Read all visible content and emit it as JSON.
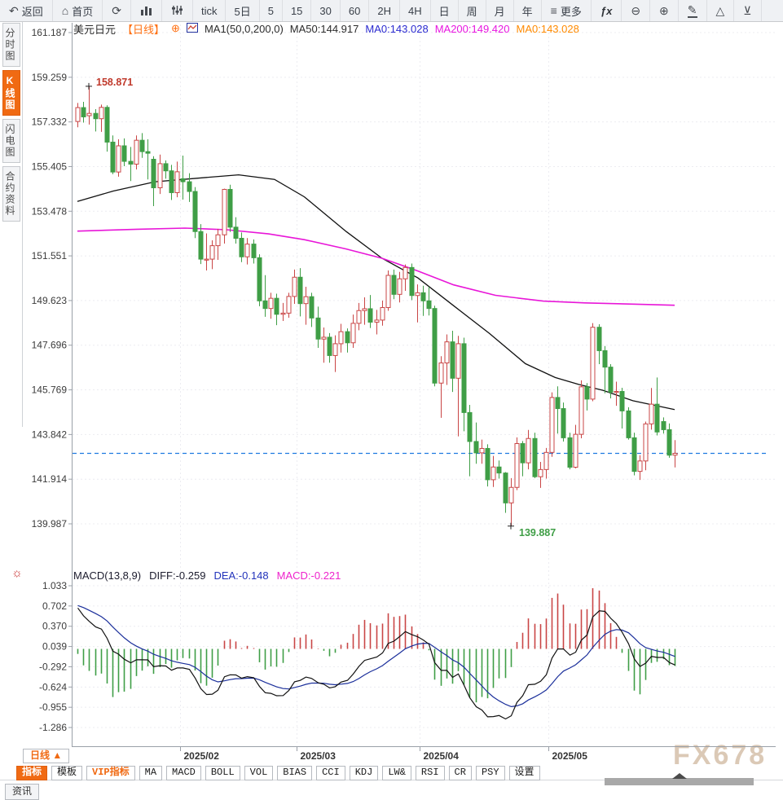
{
  "icons": {
    "back_arrow": "↶",
    "home": "⌂",
    "refresh": "⟳",
    "hamburger": "≡",
    "fx": "ƒx",
    "zoom_out": "⊖",
    "zoom_in": "⊕",
    "pencil": "✎",
    "triangle": "△",
    "xor": "⊻",
    "sun_settings": "☼",
    "circle_plus": "⊕"
  },
  "toolbar": {
    "back_label": "返回",
    "home_label": "首页",
    "periods": [
      "tick",
      "5日",
      "5",
      "15",
      "30",
      "60",
      "2H",
      "4H",
      "日",
      "周",
      "月",
      "年"
    ],
    "more_label": "更多"
  },
  "sidebar": {
    "items": [
      {
        "label": "分时图"
      },
      {
        "label": "K线图",
        "selected": true
      },
      {
        "label": "闪电图"
      },
      {
        "label": "合约资料"
      }
    ]
  },
  "chart_header": {
    "symbol": "美元日元",
    "period": "【日线】",
    "ma_settings": "MA1(50,0,200,0)",
    "ma50": "MA50:144.917",
    "ma0_blue": "MA0:143.028",
    "ma200": "MA200:149.420",
    "ma0_orange": "MA0:143.028"
  },
  "macd_header": {
    "formula": "MACD(13,8,9)",
    "diff": "DIFF:-0.259",
    "dea": "DEA:-0.148",
    "macd": "MACD:-0.221"
  },
  "bottom": {
    "period_label": "日线 ▲",
    "tabs": [
      {
        "label": "指标",
        "state": "selected"
      },
      {
        "label": "模板",
        "state": "normal"
      },
      {
        "label": "VIP指标",
        "state": "vip"
      },
      {
        "label": "MA",
        "state": "normal"
      },
      {
        "label": "MACD",
        "state": "normal"
      },
      {
        "label": "BOLL",
        "state": "normal"
      },
      {
        "label": "VOL",
        "state": "normal"
      },
      {
        "label": "BIAS",
        "state": "normal"
      },
      {
        "label": "CCI",
        "state": "normal"
      },
      {
        "label": "KDJ",
        "state": "normal"
      },
      {
        "label": "LW&",
        "state": "normal"
      },
      {
        "label": "RSI",
        "state": "normal"
      },
      {
        "label": "CR",
        "state": "normal"
      },
      {
        "label": "PSY",
        "state": "normal"
      },
      {
        "label": "设置",
        "state": "normal"
      }
    ],
    "news_tab": "资讯"
  },
  "watermark": "FX678",
  "chart_data": {
    "type": "candlestick_with_macd",
    "title": "美元日元 日线 (USD/JPY daily)",
    "y_axis_ticks": [
      "161.187",
      "159.259",
      "157.332",
      "155.405",
      "153.478",
      "151.551",
      "149.623",
      "147.696",
      "145.769",
      "143.842",
      "141.914",
      "139.987"
    ],
    "macd_axis_ticks": [
      "1.033",
      "0.702",
      "0.370",
      "0.039",
      "-0.292",
      "-0.624",
      "-0.955",
      "-1.286"
    ],
    "x_ticks": [
      "2025/02",
      "2025/03",
      "2025/04",
      "2025/05"
    ],
    "current_price": 143.028,
    "high_marker": {
      "label": "158.871",
      "value": 158.871,
      "color": "#c0392b"
    },
    "low_marker": {
      "label": "139.887",
      "value": 139.887,
      "color": "#3f9e46"
    },
    "colors": {
      "up": "#c94545",
      "down": "#3f9e46",
      "ma50": "#111111",
      "ma200": "#e816d8",
      "diff": "#111111",
      "dea": "#1b2f9b",
      "current_line": "#1f7ae0",
      "grid": "#ececf1",
      "axis": "#9aa0a8",
      "label": "#3b3b3b"
    },
    "candles": [
      [
        "01-08",
        157.35,
        158.15,
        157.1,
        157.95
      ],
      [
        "01-09",
        157.95,
        158.2,
        157.3,
        157.55
      ],
      [
        "01-10",
        157.6,
        158.87,
        157.22,
        157.7
      ],
      [
        "01-13",
        157.7,
        157.88,
        156.92,
        157.47
      ],
      [
        "01-14",
        157.47,
        158.08,
        156.9,
        157.96
      ],
      [
        "01-15",
        157.96,
        158.05,
        156.05,
        156.46
      ],
      [
        "01-16",
        156.46,
        156.75,
        155.08,
        155.17
      ],
      [
        "01-17",
        155.17,
        156.58,
        154.97,
        156.3
      ],
      [
        "01-20",
        156.3,
        156.62,
        155.42,
        155.63
      ],
      [
        "01-21",
        155.63,
        156.25,
        154.78,
        155.51
      ],
      [
        "01-22",
        155.51,
        156.75,
        155.28,
        156.54
      ],
      [
        "01-23",
        156.54,
        156.85,
        155.78,
        156.05
      ],
      [
        "01-24",
        156.05,
        156.58,
        154.85,
        155.98
      ],
      [
        "01-27",
        155.72,
        155.85,
        153.7,
        154.49
      ],
      [
        "01-28",
        154.49,
        155.92,
        154.22,
        155.53
      ],
      [
        "01-29",
        155.53,
        155.67,
        154.88,
        155.22
      ],
      [
        "01-30",
        155.22,
        155.48,
        153.96,
        154.28
      ],
      [
        "01-31",
        154.28,
        155.62,
        154.08,
        155.18
      ],
      [
        "02-03",
        154.88,
        155.88,
        153.98,
        154.75
      ],
      [
        "02-04",
        154.75,
        155.12,
        153.88,
        154.33
      ],
      [
        "02-05",
        154.33,
        154.52,
        152.32,
        152.6
      ],
      [
        "02-06",
        152.6,
        152.92,
        151.2,
        151.41
      ],
      [
        "02-07",
        151.41,
        152.52,
        150.92,
        151.41
      ],
      [
        "02-10",
        151.41,
        152.22,
        150.98,
        151.99
      ],
      [
        "02-11",
        151.99,
        152.72,
        151.38,
        152.46
      ],
      [
        "02-12",
        152.46,
        154.45,
        152.08,
        154.42
      ],
      [
        "02-13",
        154.42,
        154.62,
        152.58,
        152.79
      ],
      [
        "02-14",
        152.79,
        153.22,
        152.08,
        152.31
      ],
      [
        "02-17",
        152.31,
        152.56,
        151.28,
        151.51
      ],
      [
        "02-18",
        151.51,
        152.32,
        151.18,
        152.06
      ],
      [
        "02-19",
        152.06,
        152.26,
        151.22,
        151.47
      ],
      [
        "02-20",
        151.47,
        151.62,
        149.38,
        149.61
      ],
      [
        "02-21",
        149.61,
        150.72,
        148.92,
        149.28
      ],
      [
        "02-24",
        149.28,
        149.96,
        148.84,
        149.72
      ],
      [
        "02-25",
        149.72,
        149.92,
        148.56,
        149.03
      ],
      [
        "02-26",
        149.03,
        149.52,
        148.74,
        149.08
      ],
      [
        "02-27",
        149.08,
        149.96,
        148.88,
        149.8
      ],
      [
        "02-28",
        149.8,
        150.96,
        149.48,
        150.63
      ],
      [
        "03-03",
        150.63,
        151.02,
        148.94,
        149.49
      ],
      [
        "03-04",
        149.49,
        150.22,
        148.58,
        149.79
      ],
      [
        "03-05",
        149.79,
        149.96,
        148.48,
        148.87
      ],
      [
        "03-06",
        148.87,
        149.36,
        147.58,
        147.96
      ],
      [
        "03-07",
        147.96,
        148.46,
        146.94,
        148.04
      ],
      [
        "03-10",
        148.04,
        148.22,
        146.94,
        147.25
      ],
      [
        "03-11",
        147.25,
        148.12,
        146.54,
        147.76
      ],
      [
        "03-12",
        147.76,
        148.62,
        147.38,
        148.28
      ],
      [
        "03-13",
        148.28,
        148.42,
        147.38,
        147.8
      ],
      [
        "03-14",
        147.8,
        149.02,
        147.58,
        148.64
      ],
      [
        "03-17",
        148.64,
        149.52,
        148.34,
        149.19
      ],
      [
        "03-18",
        149.19,
        149.76,
        148.58,
        149.27
      ],
      [
        "03-19",
        149.27,
        149.86,
        148.44,
        148.69
      ],
      [
        "03-20",
        148.69,
        149.22,
        148.16,
        148.78
      ],
      [
        "03-21",
        148.78,
        149.62,
        148.54,
        149.32
      ],
      [
        "03-24",
        149.32,
        150.92,
        149.18,
        150.71
      ],
      [
        "03-25",
        150.71,
        150.96,
        149.68,
        149.89
      ],
      [
        "03-26",
        149.89,
        150.86,
        149.54,
        150.56
      ],
      [
        "03-27",
        150.56,
        151.18,
        150.04,
        151.05
      ],
      [
        "03-28",
        151.05,
        151.22,
        149.64,
        149.84
      ],
      [
        "03-31",
        149.84,
        150.32,
        148.68,
        149.96
      ],
      [
        "04-01",
        149.96,
        150.26,
        148.96,
        149.61
      ],
      [
        "04-02",
        149.61,
        150.22,
        148.98,
        149.28
      ],
      [
        "04-03",
        149.28,
        149.4,
        145.92,
        146.06
      ],
      [
        "04-04",
        146.06,
        147.22,
        144.56,
        146.93
      ],
      [
        "04-07",
        146.93,
        148.16,
        145.98,
        147.84
      ],
      [
        "04-08",
        147.84,
        148.32,
        145.68,
        146.27
      ],
      [
        "04-09",
        146.27,
        148.1,
        143.76,
        147.76
      ],
      [
        "04-10",
        147.76,
        148.02,
        143.98,
        144.79
      ],
      [
        "04-11",
        144.79,
        145.12,
        142.04,
        143.54
      ],
      [
        "04-14",
        143.54,
        144.36,
        142.58,
        143.05
      ],
      [
        "04-15",
        143.05,
        143.62,
        142.58,
        143.24
      ],
      [
        "04-16",
        143.24,
        143.42,
        141.6,
        141.89
      ],
      [
        "04-17",
        141.89,
        142.92,
        141.58,
        142.44
      ],
      [
        "04-18",
        142.44,
        142.72,
        141.94,
        142.18
      ],
      [
        "04-21",
        142.18,
        142.22,
        140.46,
        140.89
      ],
      [
        "04-22",
        140.89,
        141.96,
        139.89,
        141.56
      ],
      [
        "04-23",
        141.56,
        143.72,
        141.44,
        143.45
      ],
      [
        "04-24",
        143.45,
        143.56,
        142.04,
        142.62
      ],
      [
        "04-25",
        142.62,
        144.04,
        142.34,
        143.67
      ],
      [
        "04-28",
        143.67,
        143.92,
        141.96,
        142.02
      ],
      [
        "04-29",
        142.02,
        142.66,
        141.54,
        142.33
      ],
      [
        "04-30",
        142.33,
        143.26,
        141.94,
        143.07
      ],
      [
        "05-01",
        143.07,
        145.66,
        142.88,
        145.44
      ],
      [
        "05-02",
        145.44,
        145.92,
        143.88,
        144.96
      ],
      [
        "05-05",
        144.96,
        145.22,
        143.54,
        143.7
      ],
      [
        "05-06",
        143.7,
        143.92,
        142.34,
        142.43
      ],
      [
        "05-07",
        142.43,
        144.26,
        142.38,
        143.85
      ],
      [
        "05-08",
        143.85,
        146.18,
        143.68,
        145.9
      ],
      [
        "05-09",
        145.9,
        146.06,
        144.88,
        145.37
      ],
      [
        "05-12",
        145.37,
        148.65,
        145.28,
        148.47
      ],
      [
        "05-13",
        148.47,
        148.6,
        146.88,
        147.46
      ],
      [
        "05-14",
        147.46,
        147.66,
        145.62,
        146.75
      ],
      [
        "05-15",
        146.75,
        146.88,
        145.4,
        145.67
      ],
      [
        "05-16",
        145.67,
        146.12,
        145.08,
        145.7
      ],
      [
        "05-19",
        145.7,
        145.86,
        144.1,
        144.86
      ],
      [
        "05-20",
        144.86,
        145.02,
        143.62,
        143.7
      ],
      [
        "05-21",
        143.7,
        143.92,
        142.08,
        142.25
      ],
      [
        "05-22",
        142.25,
        142.95,
        141.88,
        142.7
      ],
      [
        "05-23",
        142.7,
        144.4,
        142.3,
        144.3
      ],
      [
        "05-26",
        144.3,
        145.85,
        144.05,
        145.15
      ],
      [
        "05-27",
        145.15,
        146.3,
        143.8,
        143.95
      ],
      [
        "05-28",
        144.4,
        144.58,
        143.88,
        144.05
      ],
      [
        "05-29",
        144.05,
        144.32,
        142.84,
        142.95
      ],
      [
        "05-30",
        142.95,
        143.6,
        142.42,
        143.03
      ]
    ],
    "ma50": [
      [
        0,
        153.9
      ],
      [
        0.06,
        154.35
      ],
      [
        0.13,
        154.75
      ],
      [
        0.2,
        154.9
      ],
      [
        0.27,
        155.05
      ],
      [
        0.33,
        154.85
      ],
      [
        0.38,
        154.1
      ],
      [
        0.45,
        152.6
      ],
      [
        0.51,
        151.45
      ],
      [
        0.57,
        150.6
      ],
      [
        0.63,
        149.4
      ],
      [
        0.69,
        148.2
      ],
      [
        0.75,
        146.9
      ],
      [
        0.8,
        146.3
      ],
      [
        0.84,
        146.0
      ],
      [
        0.88,
        145.75
      ],
      [
        0.93,
        145.3
      ],
      [
        1,
        144.92
      ]
    ],
    "ma200": [
      [
        0,
        152.62
      ],
      [
        0.1,
        152.7
      ],
      [
        0.18,
        152.75
      ],
      [
        0.25,
        152.68
      ],
      [
        0.32,
        152.5
      ],
      [
        0.38,
        152.25
      ],
      [
        0.45,
        151.85
      ],
      [
        0.51,
        151.45
      ],
      [
        0.57,
        150.9
      ],
      [
        0.63,
        150.3
      ],
      [
        0.7,
        149.85
      ],
      [
        0.78,
        149.6
      ],
      [
        0.85,
        149.52
      ],
      [
        0.93,
        149.47
      ],
      [
        1,
        149.42
      ]
    ],
    "macd": {
      "params": [
        13,
        8,
        9
      ],
      "seed": {
        "ema8_offset": 0,
        "ema13_offset": -0.78,
        "dea_start": 0.72
      }
    }
  }
}
